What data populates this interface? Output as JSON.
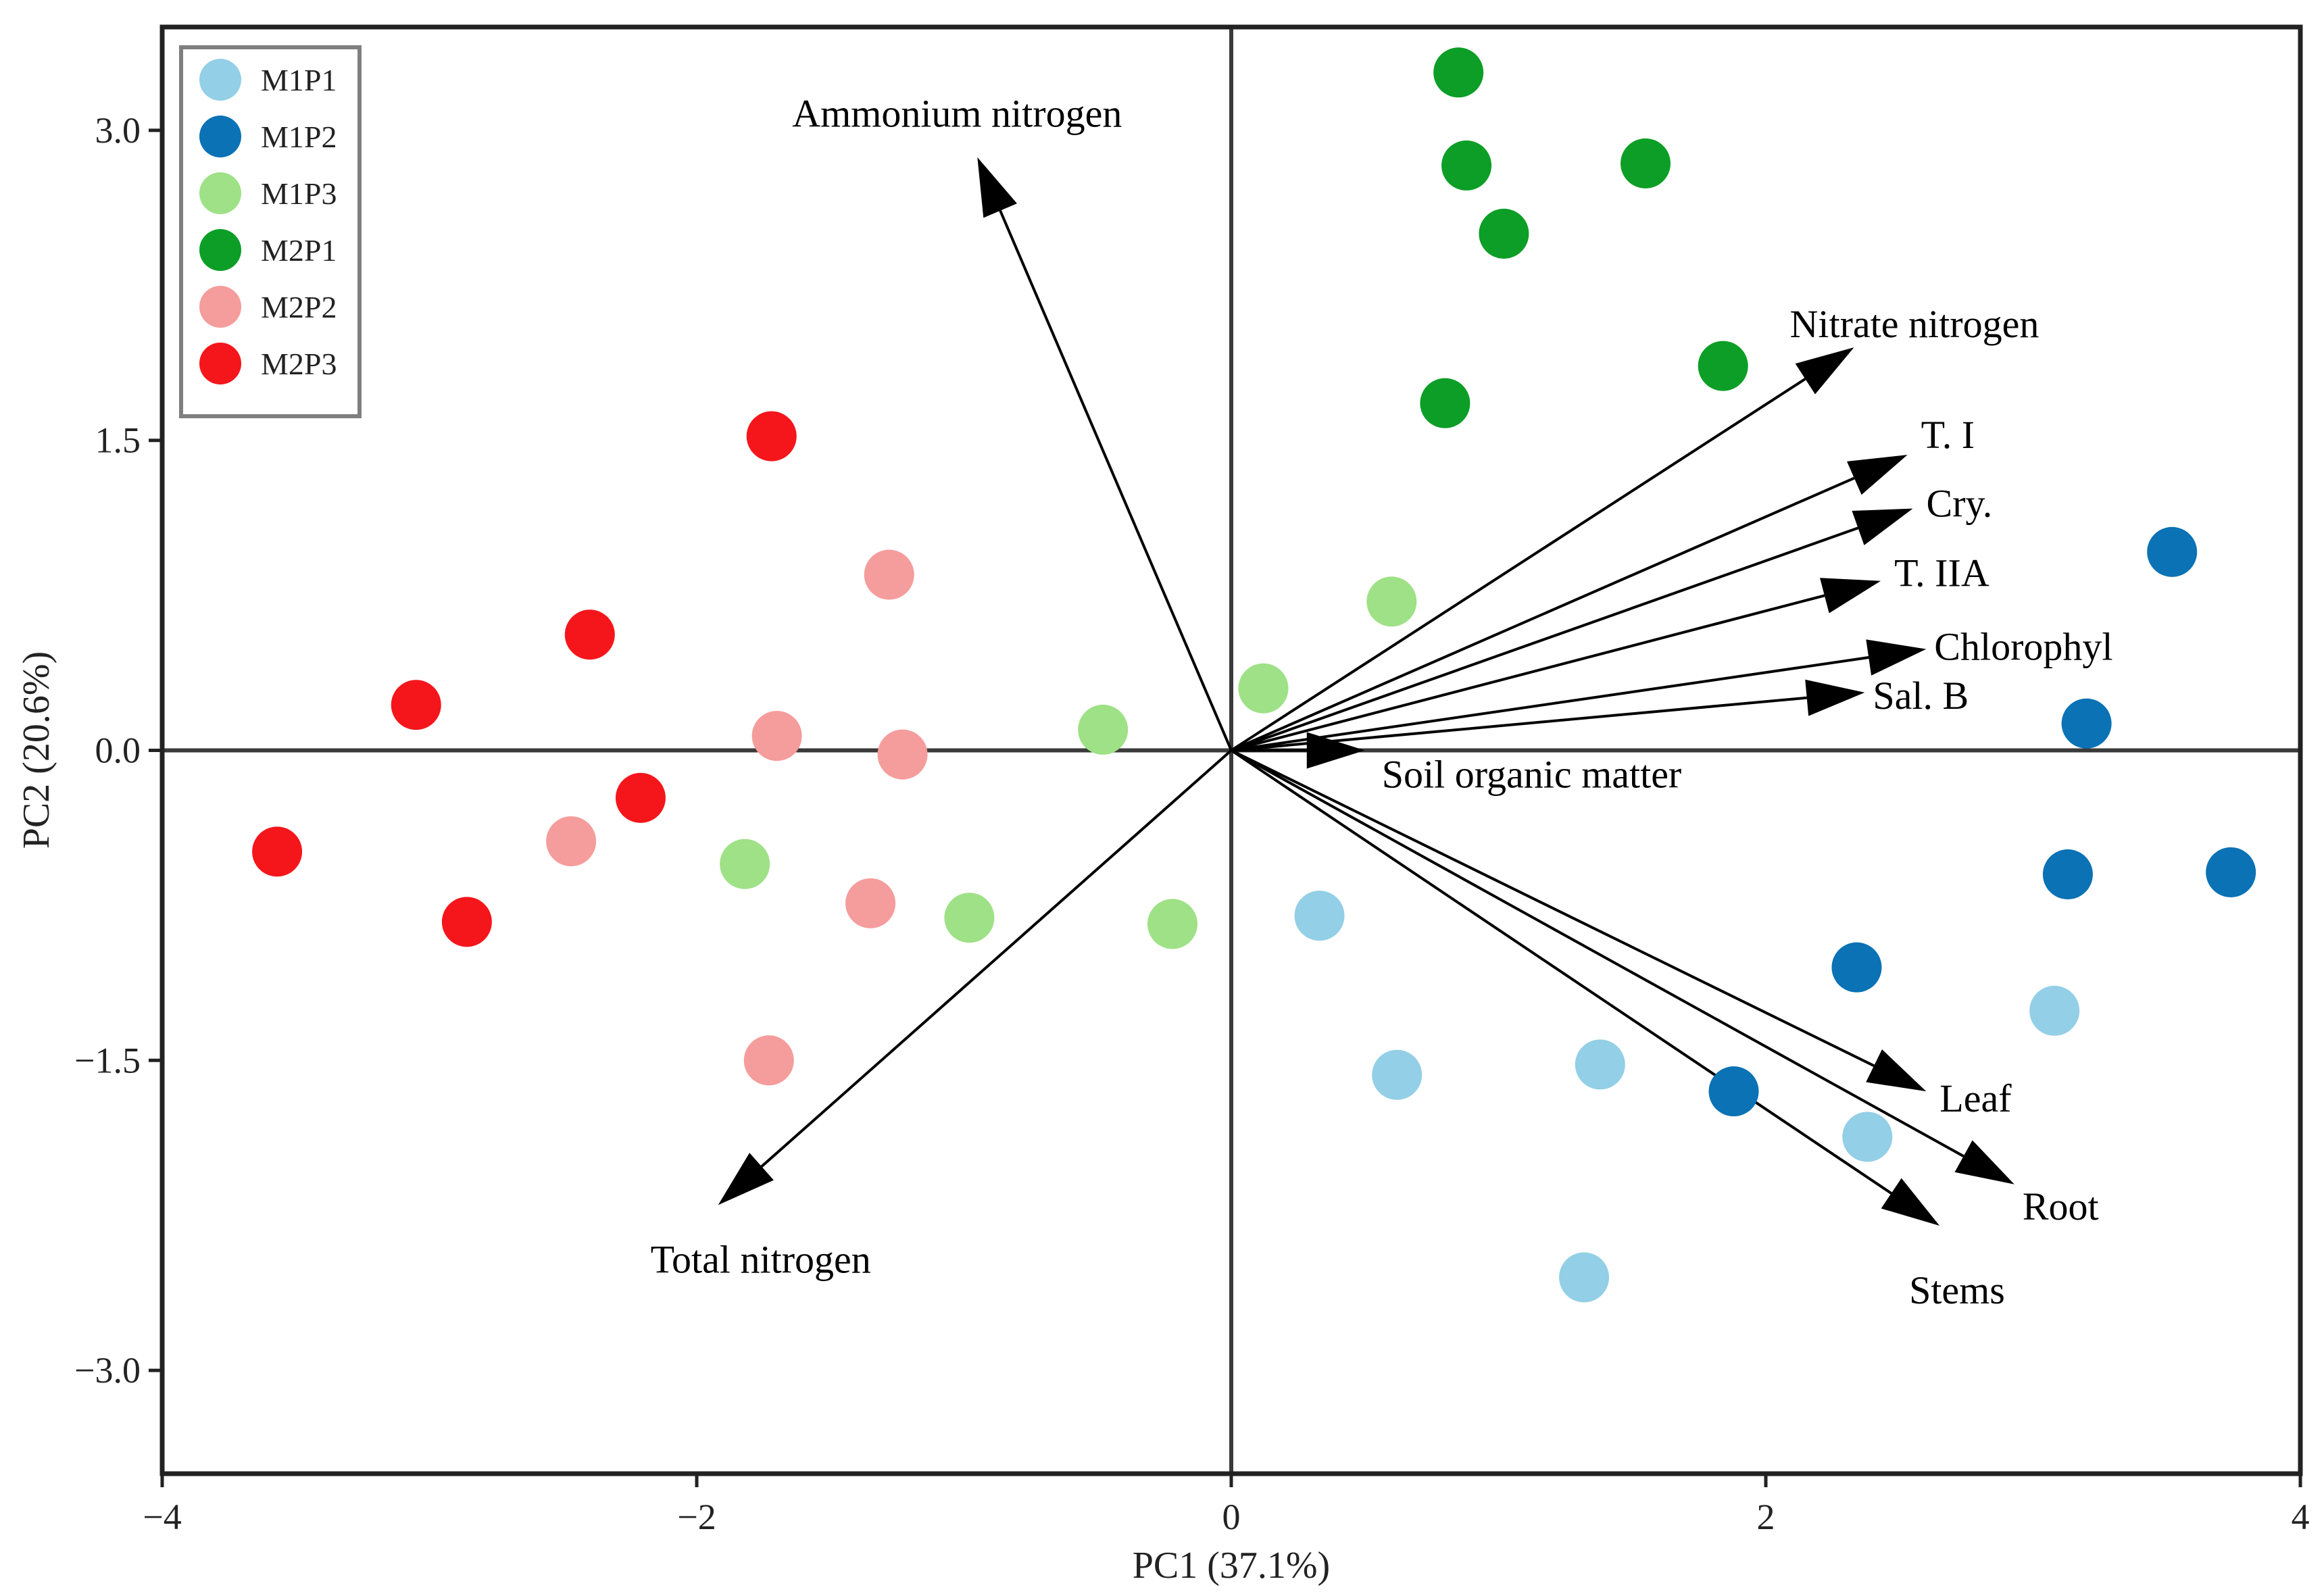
{
  "chart_data": {
    "type": "scatter",
    "title": "",
    "xlabel": "PC1 (37.1%)",
    "ylabel": "PC2 (20.6%)",
    "xlim": [
      -4,
      4
    ],
    "ylim": [
      -3.5,
      3.5
    ],
    "xticks": [
      -4,
      -2,
      0,
      2,
      4
    ],
    "xtick_labels": [
      "−4",
      "−2",
      "0",
      "2",
      "4"
    ],
    "yticks": [
      3.0,
      1.5,
      0.0,
      -1.5,
      -3.0
    ],
    "ytick_labels": [
      "3.0",
      "1.5",
      "0.0",
      "−1.5",
      "−3.0"
    ],
    "grid": false,
    "zero_lines": true,
    "legend_position": "top-left",
    "series": [
      {
        "name": "M1P1",
        "color": "#93cfe6",
        "points": [
          [
            0.33,
            -0.8
          ],
          [
            1.38,
            -1.52
          ],
          [
            0.62,
            -1.57
          ],
          [
            2.38,
            -1.87
          ],
          [
            1.32,
            -2.55
          ],
          [
            3.08,
            -1.26
          ]
        ]
      },
      {
        "name": "M1P2",
        "color": "#0a72b5",
        "points": [
          [
            3.52,
            0.96
          ],
          [
            3.2,
            0.13
          ],
          [
            3.13,
            -0.6
          ],
          [
            3.74,
            -0.59
          ],
          [
            2.34,
            -1.05
          ],
          [
            1.88,
            -1.65
          ]
        ]
      },
      {
        "name": "M1P3",
        "color": "#9ee186",
        "points": [
          [
            0.6,
            0.72
          ],
          [
            0.12,
            0.3
          ],
          [
            -0.48,
            0.1
          ],
          [
            -1.82,
            -0.55
          ],
          [
            -0.98,
            -0.81
          ],
          [
            -0.22,
            -0.84
          ]
        ]
      },
      {
        "name": "M2P1",
        "color": "#0c9e26",
        "points": [
          [
            0.85,
            3.28
          ],
          [
            0.88,
            2.83
          ],
          [
            1.55,
            2.84
          ],
          [
            1.02,
            2.5
          ],
          [
            1.84,
            1.86
          ],
          [
            0.8,
            1.68
          ]
        ]
      },
      {
        "name": "M2P2",
        "color": "#f59c9c",
        "points": [
          [
            -1.28,
            0.85
          ],
          [
            -1.7,
            0.07
          ],
          [
            -1.23,
            -0.02
          ],
          [
            -2.47,
            -0.44
          ],
          [
            -1.35,
            -0.74
          ],
          [
            -1.73,
            -1.5
          ]
        ]
      },
      {
        "name": "M2P3",
        "color": "#f5161c",
        "points": [
          [
            -1.72,
            1.52
          ],
          [
            -2.4,
            0.56
          ],
          [
            -3.05,
            0.22
          ],
          [
            -2.21,
            -0.23
          ],
          [
            -3.57,
            -0.49
          ],
          [
            -2.86,
            -0.83
          ]
        ]
      }
    ],
    "loadings": [
      {
        "label": "Ammonium nitrogen",
        "x": -0.95,
        "y": 2.87
      },
      {
        "label": "Nitrate nitrogen",
        "x": 2.33,
        "y": 1.95
      },
      {
        "label": "T. I",
        "x": 2.53,
        "y": 1.43
      },
      {
        "label": "Cry.",
        "x": 2.55,
        "y": 1.17
      },
      {
        "label": "T. IIA",
        "x": 2.43,
        "y": 0.82
      },
      {
        "label": "Chlorophyl",
        "x": 2.6,
        "y": 0.49
      },
      {
        "label": "Sal. B",
        "x": 2.37,
        "y": 0.28
      },
      {
        "label": "Soil organic matter",
        "x": 0.5,
        "y": 0.0
      },
      {
        "label": "Leaf",
        "x": 2.6,
        "y": -1.65
      },
      {
        "label": "Root",
        "x": 2.93,
        "y": -2.1
      },
      {
        "label": "Stems",
        "x": 2.65,
        "y": -2.3
      },
      {
        "label": "Total nitrogen",
        "x": -1.92,
        "y": -2.2
      }
    ]
  }
}
